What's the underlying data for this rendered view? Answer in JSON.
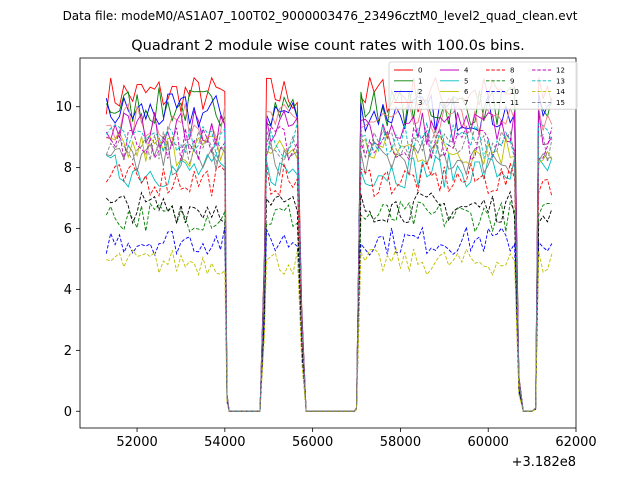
{
  "suptitle": "Data file: modeM0/AS1A07_100T02_9000003476_23496cztM0_level2_quad_clean.evt",
  "chart_data": {
    "type": "line",
    "title": "Quadrant 2 module wise count rates with 100.0s bins.",
    "xlabel": "",
    "ylabel": "",
    "x_offset_label": "+3.182e8",
    "xlim": [
      50700,
      62000
    ],
    "ylim": [
      -0.55,
      11.6
    ],
    "xticks": [
      52000,
      54000,
      56000,
      58000,
      60000,
      62000
    ],
    "xtick_labels": [
      "52000",
      "54000",
      "56000",
      "58000",
      "60000",
      "62000"
    ],
    "yticks": [
      0,
      2,
      4,
      6,
      8,
      10
    ],
    "ytick_labels": [
      "0",
      "2",
      "4",
      "6",
      "8",
      "10"
    ],
    "grid": false,
    "legend_position": "top-right",
    "legend_columns": 4,
    "segments": [
      {
        "start": 51300,
        "end": 54000,
        "mode": "on"
      },
      {
        "start": 54100,
        "end": 54800,
        "mode": "off"
      },
      {
        "start": 54950,
        "end": 55700,
        "mode": "on"
      },
      {
        "start": 55850,
        "end": 56950,
        "mode": "off"
      },
      {
        "start": 57100,
        "end": 60650,
        "mode": "on"
      },
      {
        "start": 60800,
        "end": 61000,
        "mode": "off"
      },
      {
        "start": 61150,
        "end": 61500,
        "mode": "on"
      }
    ],
    "transitions": [
      {
        "x": 54050,
        "y": 0.5
      },
      {
        "x": 54900,
        "y": 4.5
      },
      {
        "x": 55750,
        "y": 3.0
      },
      {
        "x": 57000,
        "y": 0.1
      },
      {
        "x": 60700,
        "y": 1.0
      },
      {
        "x": 61080,
        "y": 0.1
      }
    ],
    "series": [
      {
        "name": "0",
        "color": "#ff0000",
        "dash": "solid",
        "level": 10.4
      },
      {
        "name": "1",
        "color": "#008000",
        "dash": "solid",
        "level": 10.0
      },
      {
        "name": "2",
        "color": "#0000ff",
        "dash": "solid",
        "level": 9.8
      },
      {
        "name": "3",
        "color": "#f08080",
        "dash": "solid",
        "level": 9.5
      },
      {
        "name": "4",
        "color": "#bf00bf",
        "dash": "solid",
        "level": 9.3
      },
      {
        "name": "5",
        "color": "#00bfbf",
        "dash": "solid",
        "level": 7.9
      },
      {
        "name": "6",
        "color": "#bfbf00",
        "dash": "solid",
        "level": 8.6
      },
      {
        "name": "7",
        "color": "#808080",
        "dash": "solid",
        "level": 8.3
      },
      {
        "name": "8",
        "color": "#ff0000",
        "dash": "dashed",
        "level": 7.6
      },
      {
        "name": "9",
        "color": "#008000",
        "dash": "dashed",
        "level": 6.4
      },
      {
        "name": "10",
        "color": "#0000ff",
        "dash": "dashed",
        "level": 5.6
      },
      {
        "name": "11",
        "color": "#000000",
        "dash": "dashed",
        "level": 6.7
      },
      {
        "name": "12",
        "color": "#bf00bf",
        "dash": "dashed",
        "level": 8.8
      },
      {
        "name": "13",
        "color": "#00bfbf",
        "dash": "dashed",
        "level": 8.9
      },
      {
        "name": "14",
        "color": "#bfbf00",
        "dash": "dashed",
        "level": 4.9
      },
      {
        "name": "15",
        "color": "#808080",
        "dash": "dashed",
        "level": 8.7
      }
    ]
  }
}
